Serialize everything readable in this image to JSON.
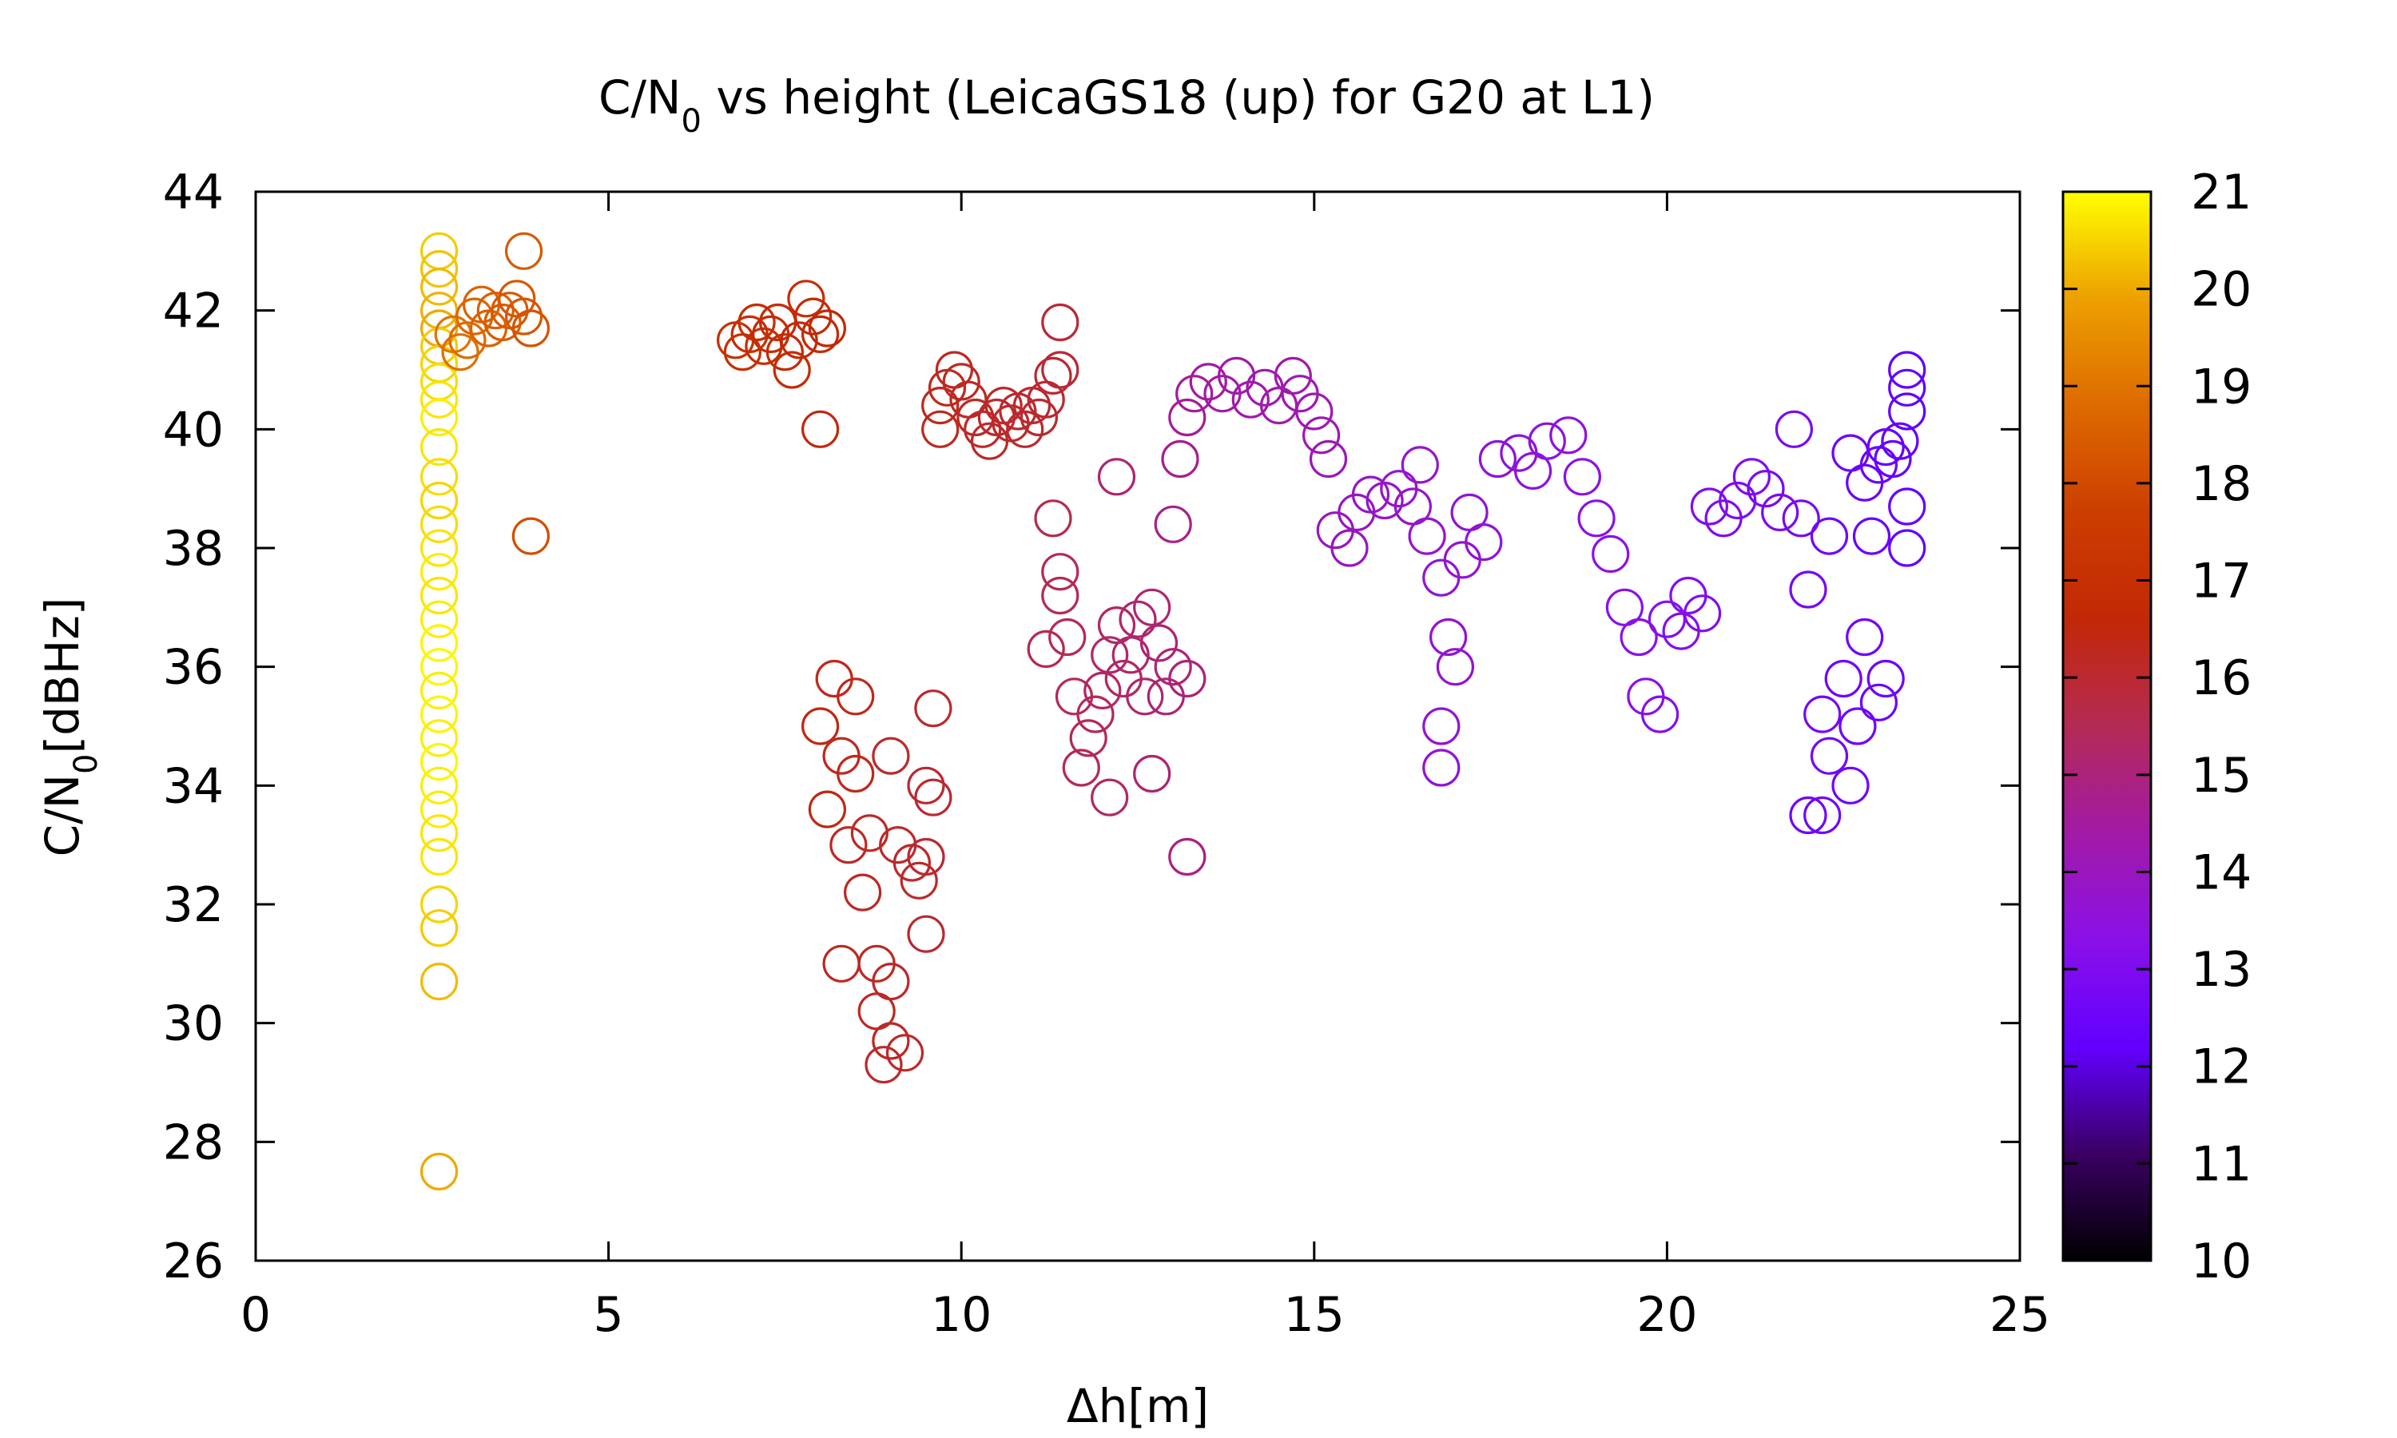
{
  "chart_data": {
    "type": "scatter",
    "title": {
      "prefix": "C/N",
      "sub": "0",
      "suffix": " vs height (LeicaGS18 (up) for G20 at L1)"
    },
    "xlabel": "Δh[m]",
    "ylabel": {
      "prefix": "C/N",
      "sub": "0",
      "suffix": "[dBHz]"
    },
    "xlim": [
      0,
      25
    ],
    "ylim": [
      26,
      44
    ],
    "xticks": [
      "0",
      "5",
      "10",
      "15",
      "20",
      "25"
    ],
    "yticks": [
      "26",
      "28",
      "30",
      "32",
      "34",
      "36",
      "38",
      "40",
      "42",
      "44"
    ],
    "colorbar": {
      "range": [
        10,
        21
      ],
      "ticks": [
        "10",
        "11",
        "12",
        "13",
        "14",
        "15",
        "16",
        "17",
        "18",
        "19",
        "20",
        "21"
      ]
    },
    "grid": false,
    "marker": "open-circle",
    "points": [
      [
        2.6,
        43.0,
        20.4
      ],
      [
        2.6,
        42.7,
        20.3
      ],
      [
        2.6,
        42.4,
        20.2
      ],
      [
        2.6,
        42.0,
        20.1
      ],
      [
        2.6,
        41.7,
        20.0
      ],
      [
        2.6,
        41.4,
        20.4
      ],
      [
        2.6,
        41.1,
        20.5
      ],
      [
        2.6,
        40.8,
        20.6
      ],
      [
        2.6,
        40.5,
        20.7
      ],
      [
        2.6,
        40.2,
        20.8
      ],
      [
        2.6,
        39.7,
        20.7
      ],
      [
        2.6,
        39.2,
        20.6
      ],
      [
        2.6,
        38.8,
        20.5
      ],
      [
        2.6,
        38.4,
        20.6
      ],
      [
        2.6,
        38.0,
        20.7
      ],
      [
        2.6,
        37.6,
        20.8
      ],
      [
        2.6,
        37.2,
        20.7
      ],
      [
        2.6,
        36.8,
        20.8
      ],
      [
        2.6,
        36.4,
        20.9
      ],
      [
        2.6,
        36.0,
        20.9
      ],
      [
        2.6,
        35.6,
        20.8
      ],
      [
        2.6,
        35.2,
        20.9
      ],
      [
        2.6,
        34.8,
        20.8
      ],
      [
        2.6,
        34.4,
        20.9
      ],
      [
        2.6,
        34.0,
        20.8
      ],
      [
        2.6,
        33.6,
        20.8
      ],
      [
        2.6,
        33.2,
        20.7
      ],
      [
        2.6,
        32.8,
        20.7
      ],
      [
        2.6,
        32.0,
        20.5
      ],
      [
        2.6,
        31.6,
        20.4
      ],
      [
        2.6,
        30.7,
        20.2
      ],
      [
        2.6,
        27.5,
        20.0
      ],
      [
        2.8,
        41.6,
        19.0
      ],
      [
        2.9,
        41.3,
        18.9
      ],
      [
        3.0,
        41.5,
        18.8
      ],
      [
        3.1,
        41.9,
        18.7
      ],
      [
        3.2,
        42.1,
        18.6
      ],
      [
        3.3,
        41.7,
        18.6
      ],
      [
        3.4,
        42.0,
        18.5
      ],
      [
        3.5,
        41.8,
        18.5
      ],
      [
        3.6,
        42.0,
        18.4
      ],
      [
        3.7,
        42.2,
        18.3
      ],
      [
        3.8,
        41.9,
        18.3
      ],
      [
        3.8,
        43.0,
        18.4
      ],
      [
        3.9,
        41.7,
        18.2
      ],
      [
        3.9,
        38.2,
        18.1
      ],
      [
        6.8,
        41.5,
        17.0
      ],
      [
        6.9,
        41.3,
        17.0
      ],
      [
        7.0,
        41.6,
        16.9
      ],
      [
        7.1,
        41.8,
        16.9
      ],
      [
        7.2,
        41.4,
        16.9
      ],
      [
        7.3,
        41.6,
        16.8
      ],
      [
        7.4,
        41.8,
        16.8
      ],
      [
        7.5,
        41.3,
        16.8
      ],
      [
        7.6,
        41.0,
        16.8
      ],
      [
        7.7,
        41.5,
        16.7
      ],
      [
        7.8,
        42.2,
        16.9
      ],
      [
        7.9,
        41.9,
        16.7
      ],
      [
        8.0,
        41.6,
        16.7
      ],
      [
        8.1,
        41.7,
        16.6
      ],
      [
        8.0,
        40.0,
        16.5
      ],
      [
        9.7,
        40.4,
        16.3
      ],
      [
        9.8,
        40.7,
        16.3
      ],
      [
        9.9,
        41.0,
        16.2
      ],
      [
        10.0,
        40.8,
        16.2
      ],
      [
        10.1,
        40.5,
        16.2
      ],
      [
        10.2,
        40.2,
        16.2
      ],
      [
        10.3,
        40.0,
        16.1
      ],
      [
        10.4,
        39.8,
        16.1
      ],
      [
        10.5,
        40.2,
        16.1
      ],
      [
        10.6,
        40.4,
        16.1
      ],
      [
        10.7,
        40.1,
        16.1
      ],
      [
        10.8,
        40.3,
        16.1
      ],
      [
        10.9,
        40.0,
        16.0
      ],
      [
        11.0,
        40.4,
        16.0
      ],
      [
        11.1,
        40.2,
        16.0
      ],
      [
        11.2,
        40.5,
        16.0
      ],
      [
        11.3,
        40.9,
        16.0
      ],
      [
        11.4,
        41.0,
        15.9
      ],
      [
        11.4,
        41.8,
        15.9
      ],
      [
        9.7,
        40.0,
        16.3
      ],
      [
        8.0,
        35.0,
        16.4
      ],
      [
        8.1,
        33.6,
        16.4
      ],
      [
        8.2,
        35.8,
        16.3
      ],
      [
        8.3,
        34.5,
        16.3
      ],
      [
        8.4,
        33.0,
        16.2
      ],
      [
        8.5,
        34.2,
        16.3
      ],
      [
        8.5,
        35.5,
        16.3
      ],
      [
        8.6,
        32.2,
        16.2
      ],
      [
        8.7,
        33.2,
        16.2
      ],
      [
        8.8,
        31.0,
        16.2
      ],
      [
        8.8,
        30.2,
        16.2
      ],
      [
        8.9,
        29.3,
        16.1
      ],
      [
        9.0,
        30.7,
        16.1
      ],
      [
        9.0,
        29.7,
        16.2
      ],
      [
        9.1,
        33.0,
        16.1
      ],
      [
        9.2,
        29.5,
        16.1
      ],
      [
        9.3,
        32.7,
        16.1
      ],
      [
        9.4,
        32.4,
        16.1
      ],
      [
        9.5,
        32.8,
        16.0
      ],
      [
        9.5,
        31.5,
        16.0
      ],
      [
        9.6,
        33.8,
        16.0
      ],
      [
        9.6,
        35.3,
        16.0
      ],
      [
        9.5,
        34.0,
        16.0
      ],
      [
        9.0,
        34.5,
        16.1
      ],
      [
        8.3,
        31.0,
        16.2
      ],
      [
        11.3,
        38.5,
        15.6
      ],
      [
        11.4,
        37.6,
        15.5
      ],
      [
        11.4,
        37.2,
        15.5
      ],
      [
        11.5,
        36.5,
        15.5
      ],
      [
        11.6,
        35.5,
        15.5
      ],
      [
        11.7,
        34.3,
        15.4
      ],
      [
        11.8,
        34.8,
        15.4
      ],
      [
        11.9,
        35.2,
        15.4
      ],
      [
        12.0,
        35.6,
        15.3
      ],
      [
        12.1,
        36.2,
        15.3
      ],
      [
        12.2,
        36.7,
        15.3
      ],
      [
        12.3,
        35.8,
        15.3
      ],
      [
        12.4,
        36.2,
        15.2
      ],
      [
        12.5,
        36.8,
        15.2
      ],
      [
        12.6,
        35.5,
        15.2
      ],
      [
        12.7,
        37.0,
        15.2
      ],
      [
        12.8,
        36.4,
        15.1
      ],
      [
        12.9,
        35.5,
        15.1
      ],
      [
        13.0,
        36.0,
        15.1
      ],
      [
        13.2,
        35.8,
        15.0
      ],
      [
        12.7,
        34.2,
        15.1
      ],
      [
        12.1,
        33.8,
        15.3
      ],
      [
        12.2,
        39.2,
        15.1
      ],
      [
        13.2,
        32.8,
        14.9
      ],
      [
        11.2,
        36.3,
        15.6
      ],
      [
        13.0,
        38.4,
        14.8
      ],
      [
        13.1,
        39.5,
        14.7
      ],
      [
        13.2,
        40.2,
        14.6
      ],
      [
        13.3,
        40.6,
        14.5
      ],
      [
        13.5,
        40.8,
        14.5
      ],
      [
        13.7,
        40.6,
        14.4
      ],
      [
        13.9,
        40.9,
        14.4
      ],
      [
        14.1,
        40.5,
        14.3
      ],
      [
        14.3,
        40.7,
        14.3
      ],
      [
        14.5,
        40.4,
        14.3
      ],
      [
        14.7,
        40.9,
        14.3
      ],
      [
        14.8,
        40.6,
        14.2
      ],
      [
        15.0,
        40.3,
        14.2
      ],
      [
        15.1,
        39.9,
        14.2
      ],
      [
        15.2,
        39.5,
        14.1
      ],
      [
        15.3,
        38.3,
        14.0
      ],
      [
        15.5,
        38.0,
        14.0
      ],
      [
        15.6,
        38.6,
        13.9
      ],
      [
        15.8,
        38.9,
        13.9
      ],
      [
        16.0,
        38.8,
        13.9
      ],
      [
        16.2,
        39.0,
        13.8
      ],
      [
        16.4,
        38.7,
        13.8
      ],
      [
        16.5,
        39.4,
        13.8
      ],
      [
        16.6,
        38.2,
        13.8
      ],
      [
        16.8,
        37.5,
        13.7
      ],
      [
        16.9,
        36.5,
        13.7
      ],
      [
        17.0,
        36.0,
        13.7
      ],
      [
        16.8,
        35.0,
        13.7
      ],
      [
        16.8,
        34.3,
        13.6
      ],
      [
        17.1,
        37.8,
        13.7
      ],
      [
        17.2,
        38.6,
        13.6
      ],
      [
        17.4,
        38.1,
        13.6
      ],
      [
        17.6,
        39.5,
        13.6
      ],
      [
        17.9,
        39.6,
        13.5
      ],
      [
        18.1,
        39.3,
        13.5
      ],
      [
        18.3,
        39.8,
        13.5
      ],
      [
        18.6,
        39.9,
        13.5
      ],
      [
        18.8,
        39.2,
        13.4
      ],
      [
        19.0,
        38.5,
        13.4
      ],
      [
        19.2,
        37.9,
        13.4
      ],
      [
        19.4,
        37.0,
        13.3
      ],
      [
        19.6,
        36.5,
        13.3
      ],
      [
        19.7,
        35.5,
        13.3
      ],
      [
        19.9,
        35.2,
        13.2
      ],
      [
        20.0,
        36.8,
        13.2
      ],
      [
        20.2,
        36.6,
        13.2
      ],
      [
        20.3,
        37.2,
        13.2
      ],
      [
        20.5,
        36.9,
        13.1
      ],
      [
        20.6,
        38.7,
        13.1
      ],
      [
        20.8,
        38.5,
        13.0
      ],
      [
        21.0,
        38.8,
        13.0
      ],
      [
        21.2,
        39.2,
        13.0
      ],
      [
        21.4,
        39.0,
        12.9
      ],
      [
        21.6,
        38.6,
        12.9
      ],
      [
        21.8,
        40.0,
        12.9
      ],
      [
        21.9,
        38.5,
        12.8
      ],
      [
        22.0,
        37.3,
        12.8
      ],
      [
        22.2,
        35.2,
        12.7
      ],
      [
        22.3,
        34.5,
        12.7
      ],
      [
        22.0,
        33.5,
        12.6
      ],
      [
        22.2,
        33.5,
        12.6
      ],
      [
        22.5,
        35.8,
        12.6
      ],
      [
        22.7,
        35.0,
        12.6
      ],
      [
        22.8,
        36.5,
        12.6
      ],
      [
        23.0,
        35.4,
        12.5
      ],
      [
        23.1,
        35.8,
        12.5
      ],
      [
        22.6,
        34.0,
        12.6
      ],
      [
        22.8,
        39.1,
        12.4
      ],
      [
        22.9,
        38.2,
        12.4
      ],
      [
        23.0,
        39.4,
        12.4
      ],
      [
        23.1,
        39.7,
        12.3
      ],
      [
        23.2,
        39.5,
        12.3
      ],
      [
        23.3,
        39.8,
        12.3
      ],
      [
        23.4,
        40.3,
        12.2
      ],
      [
        23.4,
        40.7,
        12.2
      ],
      [
        23.4,
        41.0,
        12.2
      ],
      [
        23.4,
        38.7,
        12.3
      ],
      [
        23.4,
        38.0,
        12.3
      ],
      [
        22.3,
        38.2,
        12.6
      ],
      [
        22.6,
        39.6,
        12.5
      ]
    ]
  }
}
